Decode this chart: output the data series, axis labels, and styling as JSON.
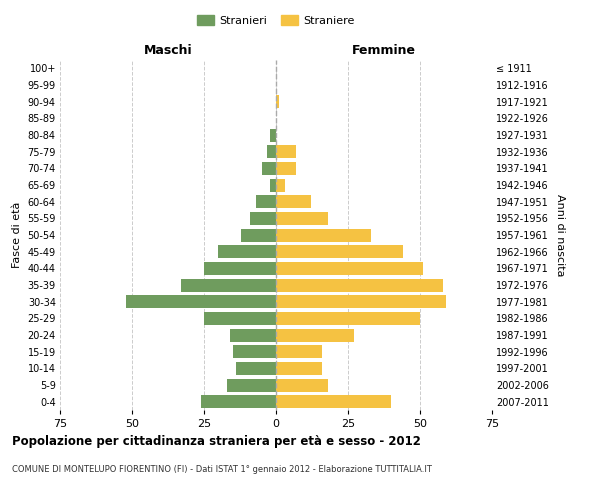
{
  "age_groups": [
    "0-4",
    "5-9",
    "10-14",
    "15-19",
    "20-24",
    "25-29",
    "30-34",
    "35-39",
    "40-44",
    "45-49",
    "50-54",
    "55-59",
    "60-64",
    "65-69",
    "70-74",
    "75-79",
    "80-84",
    "85-89",
    "90-94",
    "95-99",
    "100+"
  ],
  "birth_years": [
    "2007-2011",
    "2002-2006",
    "1997-2001",
    "1992-1996",
    "1987-1991",
    "1982-1986",
    "1977-1981",
    "1972-1976",
    "1967-1971",
    "1962-1966",
    "1957-1961",
    "1952-1956",
    "1947-1951",
    "1942-1946",
    "1937-1941",
    "1932-1936",
    "1927-1931",
    "1922-1926",
    "1917-1921",
    "1912-1916",
    "≤ 1911"
  ],
  "males": [
    26,
    17,
    14,
    15,
    16,
    25,
    52,
    33,
    25,
    20,
    12,
    9,
    7,
    2,
    5,
    3,
    2,
    0,
    0,
    0,
    0
  ],
  "females": [
    40,
    18,
    16,
    16,
    27,
    50,
    59,
    58,
    51,
    44,
    33,
    18,
    12,
    3,
    7,
    7,
    0,
    0,
    1,
    0,
    0
  ],
  "male_color": "#6f9c5e",
  "female_color": "#f5c242",
  "background_color": "#ffffff",
  "grid_color": "#cccccc",
  "title": "Popolazione per cittadinanza straniera per età e sesso - 2012",
  "subtitle": "COMUNE DI MONTELUPO FIORENTINO (FI) - Dati ISTAT 1° gennaio 2012 - Elaborazione TUTTITALIA.IT",
  "xlabel_left": "Maschi",
  "xlabel_right": "Femmine",
  "ylabel_left": "Fasce di età",
  "ylabel_right": "Anni di nascita",
  "legend_male": "Stranieri",
  "legend_female": "Straniere",
  "xlim": 75
}
